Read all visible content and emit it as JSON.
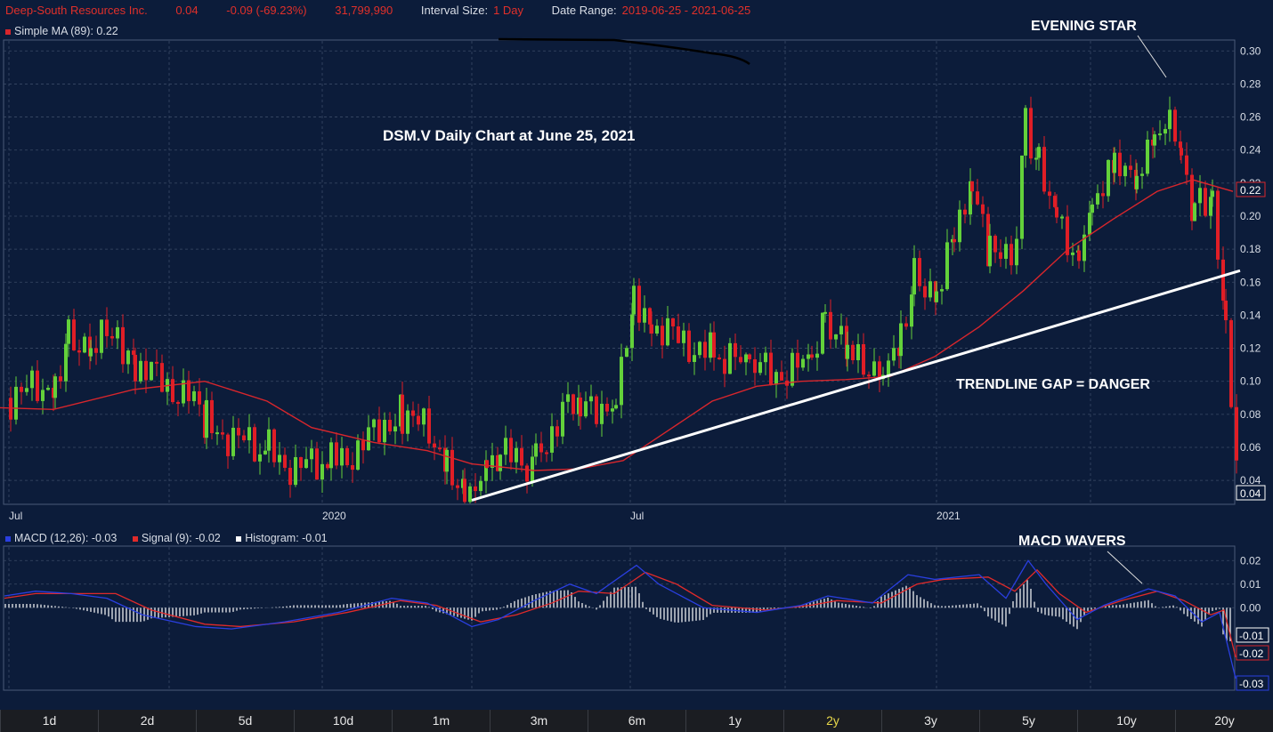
{
  "header": {
    "name": "Deep-South Resources Inc.",
    "last": "0.04",
    "change": "-0.09 (-69.23%)",
    "volume": "31,799,990",
    "interval_label": "Interval Size:",
    "interval": "1 Day",
    "range_label": "Date Range:",
    "range": "2019-06-25 - 2021-06-25"
  },
  "ma_legend": "Simple MA (89): 0.22",
  "macd_legend": {
    "macd": "MACD (12,26): -0.03",
    "signal": "Signal (9): -0.02",
    "hist": "Histogram: -0.01"
  },
  "timeframes": [
    "1d",
    "2d",
    "5d",
    "10d",
    "1m",
    "3m",
    "6m",
    "1y",
    "2y",
    "3y",
    "5y",
    "10y",
    "20y"
  ],
  "selected_timeframe": "2y",
  "colors": {
    "up": "#63d13a",
    "down": "#e01e26",
    "ma": "#d8262c",
    "macd": "#2a3fe0",
    "signal": "#e02a2a",
    "grid": "#3a4a66",
    "bg": "#0c1c3a"
  },
  "chart_data": [
    {
      "type": "candlestick",
      "title": "DSM.V Daily Chart at June 25, 2021",
      "x_ticks": [
        "Jul",
        "2020",
        "Jul",
        "2021"
      ],
      "y_ticks": [
        "0.30",
        "0.28",
        "0.26",
        "0.24",
        "0.22",
        "0.20",
        "0.18",
        "0.16",
        "0.14",
        "0.12",
        "0.10",
        "0.08",
        "0.06",
        "0.04"
      ],
      "ylim": [
        0.025,
        0.305
      ],
      "price_tag": "0.04",
      "ma_tag": "0.22",
      "annotations": [
        "EVENING STAR",
        "TRENDLINE GAP = DANGER"
      ],
      "series": [
        {
          "name": "Simple MA (89)",
          "points": [
            [
              0,
              0.084
            ],
            [
              60,
              0.083
            ],
            [
              150,
              0.095
            ],
            [
              230,
              0.1
            ],
            [
              300,
              0.088
            ],
            [
              350,
              0.072
            ],
            [
              420,
              0.063
            ],
            [
              480,
              0.058
            ],
            [
              530,
              0.05
            ],
            [
              600,
              0.046
            ],
            [
              650,
              0.047
            ],
            [
              700,
              0.052
            ],
            [
              750,
              0.07
            ],
            [
              800,
              0.088
            ],
            [
              850,
              0.097
            ],
            [
              900,
              0.1
            ],
            [
              950,
              0.101
            ],
            [
              1000,
              0.103
            ],
            [
              1050,
              0.115
            ],
            [
              1100,
              0.133
            ],
            [
              1150,
              0.155
            ],
            [
              1200,
              0.18
            ],
            [
              1250,
              0.198
            ],
            [
              1300,
              0.215
            ],
            [
              1340,
              0.222
            ],
            [
              1385,
              0.215
            ]
          ]
        },
        {
          "name": "Trendline",
          "points": [
            [
              530,
              0.028
            ],
            [
              1393,
              0.167
            ]
          ]
        }
      ],
      "candles_approx": [
        [
          10,
          0.09
        ],
        [
          60,
          0.1
        ],
        [
          75,
          0.13
        ],
        [
          100,
          0.12
        ],
        [
          130,
          0.13
        ],
        [
          150,
          0.11
        ],
        [
          180,
          0.1
        ],
        [
          210,
          0.09
        ],
        [
          230,
          0.075
        ],
        [
          260,
          0.065
        ],
        [
          300,
          0.058
        ],
        [
          330,
          0.047
        ],
        [
          370,
          0.052
        ],
        [
          400,
          0.058
        ],
        [
          430,
          0.075
        ],
        [
          450,
          0.082
        ],
        [
          480,
          0.068
        ],
        [
          500,
          0.055
        ],
        [
          520,
          0.03
        ],
        [
          545,
          0.04
        ],
        [
          560,
          0.055
        ],
        [
          600,
          0.05
        ],
        [
          630,
          0.085
        ],
        [
          650,
          0.08
        ],
        [
          690,
          0.09
        ],
        [
          710,
          0.155
        ],
        [
          730,
          0.135
        ],
        [
          760,
          0.125
        ],
        [
          800,
          0.117
        ],
        [
          840,
          0.108
        ],
        [
          870,
          0.105
        ],
        [
          910,
          0.11
        ],
        [
          925,
          0.14
        ],
        [
          950,
          0.115
        ],
        [
          990,
          0.108
        ],
        [
          1010,
          0.13
        ],
        [
          1025,
          0.165
        ],
        [
          1050,
          0.155
        ],
        [
          1070,
          0.185
        ],
        [
          1090,
          0.215
        ],
        [
          1110,
          0.175
        ],
        [
          1140,
          0.185
        ],
        [
          1150,
          0.26
        ],
        [
          1165,
          0.23
        ],
        [
          1185,
          0.205
        ],
        [
          1210,
          0.17
        ],
        [
          1225,
          0.21
        ],
        [
          1250,
          0.225
        ],
        [
          1275,
          0.23
        ],
        [
          1295,
          0.25
        ],
        [
          1312,
          0.26
        ],
        [
          1325,
          0.235
        ],
        [
          1340,
          0.205
        ],
        [
          1360,
          0.215
        ],
        [
          1375,
          0.13
        ],
        [
          1388,
          0.04
        ]
      ]
    },
    {
      "type": "line",
      "title": "MACD",
      "y_ticks": [
        "0.02",
        "0.01",
        "0.00"
      ],
      "ylim": [
        -0.035,
        0.025
      ],
      "tags": [
        "-0.01",
        "-0.02",
        "-0.03"
      ],
      "annotation": "MACD WAVERS",
      "series": [
        {
          "name": "MACD (12,26)",
          "points": [
            [
              5,
              0.005
            ],
            [
              40,
              0.007
            ],
            [
              80,
              0.006
            ],
            [
              120,
              0.004
            ],
            [
              160,
              -0.003
            ],
            [
              220,
              -0.008
            ],
            [
              260,
              -0.009
            ],
            [
              320,
              -0.006
            ],
            [
              380,
              -0.002
            ],
            [
              440,
              0.004
            ],
            [
              480,
              0.002
            ],
            [
              530,
              -0.008
            ],
            [
              560,
              -0.005
            ],
            [
              600,
              0.003
            ],
            [
              640,
              0.01
            ],
            [
              670,
              0.006
            ],
            [
              715,
              0.018
            ],
            [
              740,
              0.01
            ],
            [
              790,
              0.0
            ],
            [
              850,
              -0.002
            ],
            [
              900,
              0.001
            ],
            [
              930,
              0.005
            ],
            [
              980,
              0.002
            ],
            [
              1020,
              0.014
            ],
            [
              1050,
              0.012
            ],
            [
              1100,
              0.014
            ],
            [
              1130,
              0.004
            ],
            [
              1155,
              0.02
            ],
            [
              1175,
              0.01
            ],
            [
              1210,
              -0.005
            ],
            [
              1240,
              0.001
            ],
            [
              1290,
              0.008
            ],
            [
              1320,
              0.005
            ],
            [
              1350,
              -0.006
            ],
            [
              1370,
              -0.002
            ],
            [
              1388,
              -0.03
            ]
          ]
        },
        {
          "name": "Signal (9)",
          "points": [
            [
              5,
              0.004
            ],
            [
              40,
              0.006
            ],
            [
              90,
              0.006
            ],
            [
              130,
              0.006
            ],
            [
              170,
              -0.001
            ],
            [
              230,
              -0.007
            ],
            [
              270,
              -0.008
            ],
            [
              330,
              -0.006
            ],
            [
              390,
              -0.002
            ],
            [
              450,
              0.003
            ],
            [
              490,
              0.001
            ],
            [
              540,
              -0.006
            ],
            [
              580,
              -0.003
            ],
            [
              620,
              0.002
            ],
            [
              650,
              0.007
            ],
            [
              690,
              0.006
            ],
            [
              725,
              0.015
            ],
            [
              760,
              0.01
            ],
            [
              800,
              0.001
            ],
            [
              860,
              -0.001
            ],
            [
              910,
              0.001
            ],
            [
              940,
              0.003
            ],
            [
              990,
              0.002
            ],
            [
              1030,
              0.01
            ],
            [
              1060,
              0.012
            ],
            [
              1110,
              0.013
            ],
            [
              1140,
              0.007
            ],
            [
              1165,
              0.016
            ],
            [
              1190,
              0.006
            ],
            [
              1220,
              -0.002
            ],
            [
              1260,
              0.003
            ],
            [
              1300,
              0.007
            ],
            [
              1330,
              0.003
            ],
            [
              1360,
              -0.003
            ],
            [
              1375,
              -0.001
            ],
            [
              1388,
              -0.021
            ]
          ]
        }
      ]
    }
  ]
}
